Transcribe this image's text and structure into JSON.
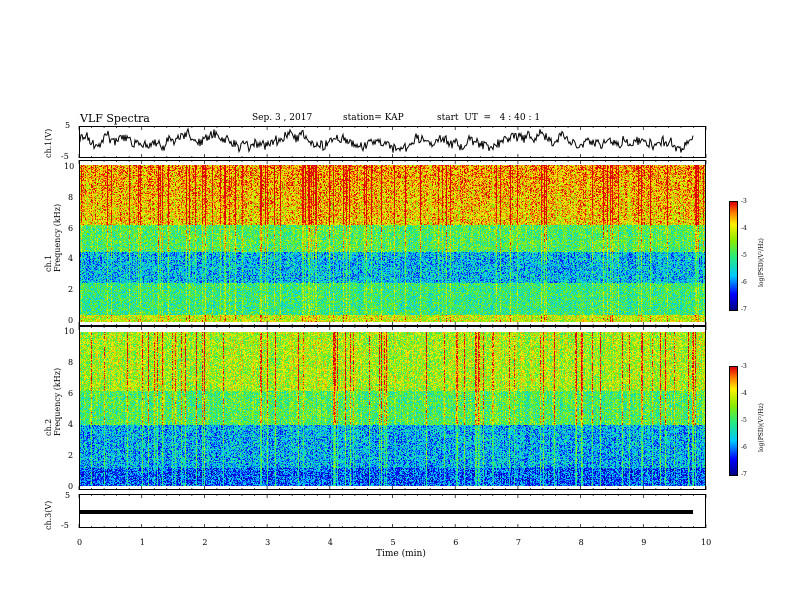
{
  "header": {
    "title": "VLF Spectra",
    "date": "Sep. 3 , 2017",
    "station": "station= KAP",
    "start": "start  UT  =   4 : 40 : 1"
  },
  "chart_data": [
    {
      "type": "line",
      "panel": "ch1-waveform",
      "ylabel": "ch.1(V)",
      "ylim": [
        -5,
        5
      ],
      "yticks": [
        "5",
        "-5"
      ],
      "xlim": [
        0,
        10
      ],
      "note": "noisy voltage trace spanning 0 to 9.8 min"
    },
    {
      "type": "heatmap",
      "panel": "ch1-spectrogram",
      "ylabel": "ch.1\nFrequency  (kHz)",
      "ylim": [
        0,
        10
      ],
      "yticks": [
        "10",
        "8",
        "6",
        "4",
        "2",
        "0"
      ],
      "xlim": [
        0,
        10
      ],
      "colorbar": {
        "ticks": [
          "-3",
          "-4",
          "-5",
          "-6",
          "-7"
        ],
        "label": "log(PSD)(V²/Hz)",
        "range": [
          -7,
          -3
        ]
      }
    },
    {
      "type": "heatmap",
      "panel": "ch2-spectrogram",
      "ylabel": "ch.2\nFrequency  (kHz)",
      "ylim": [
        0,
        10
      ],
      "yticks": [
        "10",
        "8",
        "6",
        "4",
        "2",
        "0"
      ],
      "xlim": [
        0,
        10
      ],
      "colorbar": {
        "ticks": [
          "-3",
          "-4",
          "-5",
          "-6",
          "-7"
        ],
        "label": "log(PSD)(V²/Hz)",
        "range": [
          -7,
          -3
        ]
      }
    },
    {
      "type": "line",
      "panel": "ch3-waveform",
      "ylabel": "ch.3(V)",
      "ylim": [
        -5,
        5
      ],
      "yticks": [
        "5",
        "-5"
      ],
      "xlim": [
        0,
        10
      ],
      "note": "flat trace near -1.5 V"
    }
  ],
  "xaxis": {
    "label": "Time  (min)",
    "ticks": [
      "0",
      "1",
      "2",
      "3",
      "4",
      "5",
      "6",
      "7",
      "8",
      "9",
      "10"
    ]
  }
}
